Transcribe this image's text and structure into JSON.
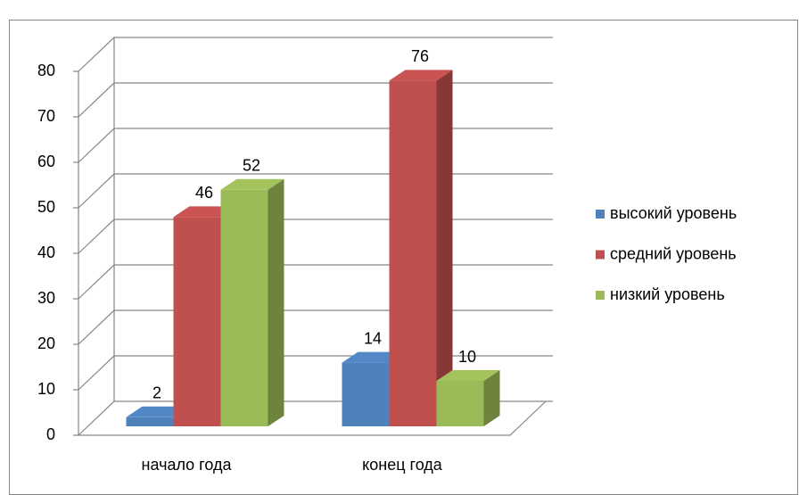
{
  "chart_data": {
    "type": "bar3d",
    "categories": [
      "начало года",
      "конец года"
    ],
    "series": [
      {
        "name": "высокий уровень",
        "color": "#4f81bd",
        "values": [
          2,
          14
        ]
      },
      {
        "name": "средний уровень",
        "color": "#c0504d",
        "values": [
          46,
          76
        ]
      },
      {
        "name": "низкий уровень",
        "color": "#9bbb59",
        "values": [
          52,
          10
        ]
      }
    ],
    "ylim": [
      0,
      80
    ],
    "yticks": [
      0,
      10,
      20,
      30,
      40,
      50,
      60,
      70,
      80
    ],
    "grid": true,
    "legend": "right"
  }
}
